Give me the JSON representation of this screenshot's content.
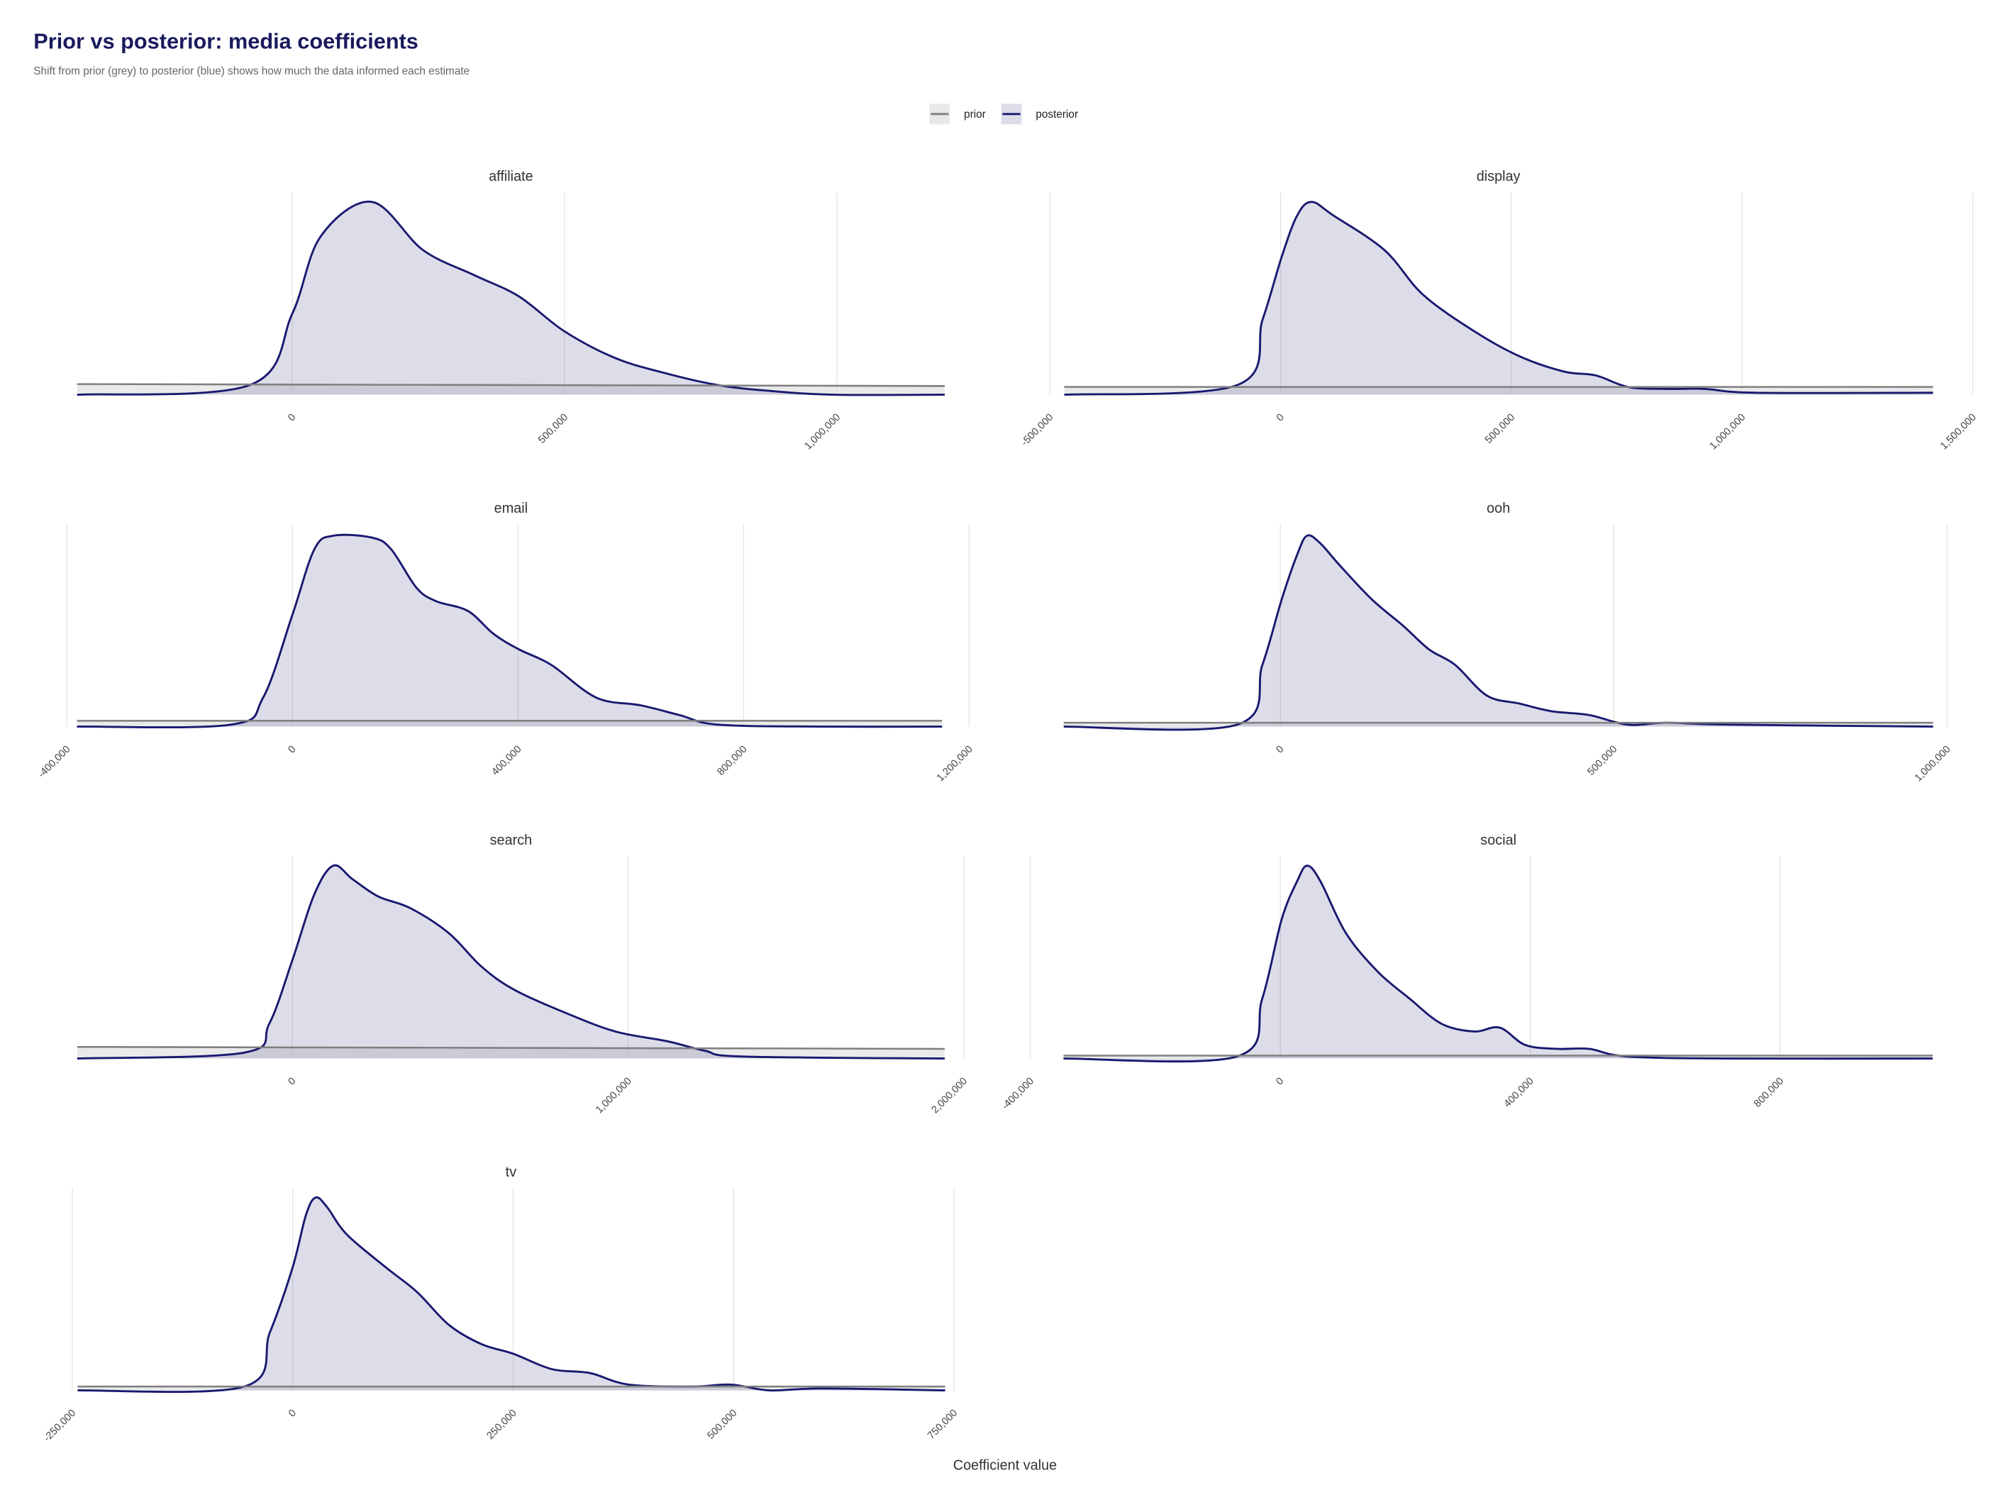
{
  "chart_data": {
    "type": "density",
    "title": "Prior vs posterior: media coefficients",
    "subtitle": "Shift from prior (grey) to posterior (blue) shows how much the data informed each estimate",
    "x_label": "Coefficient value",
    "legend": [
      {
        "name": "prior",
        "color": "#7f7f7f"
      },
      {
        "name": "posterior",
        "color": "#191970"
      }
    ],
    "panels": [
      {
        "title": "affiliate",
        "xlim": [
          -475000,
          1278000
        ],
        "xticks": [
          0,
          {
            "value": 500000,
            "label": "500,000"
          },
          {
            "value": 1000000,
            "label": "1,000,000"
          }
        ],
        "ylim": [
          0,
          1.05
        ],
        "series": [
          {
            "x": [
              -395000,
              1198000
            ],
            "values": [
              0.055,
              0.045
            ]
          },
          {
            "x": [
              -395000,
              -78000,
              0,
              52000,
              146000,
              240000,
              334000,
              416000,
              499000,
              593000,
              687000,
              781000,
              875000,
              993000,
              1198000
            ],
            "values": [
              0,
              0.05,
              0.42,
              0.82,
              1.0,
              0.75,
              0.62,
              0.51,
              0.33,
              0.19,
              0.11,
              0.05,
              0.02,
              0,
              0
            ]
          }
        ]
      },
      {
        "title": "display",
        "xlim": [
          -564000,
          1508000
        ],
        "xticks": [
          {
            "value": -500000,
            "label": "-500,000"
          },
          0,
          {
            "value": 500000,
            "label": "500,000"
          },
          {
            "value": 1000000,
            "label": "1,000,000"
          },
          {
            "value": 1500000,
            "label": "1,500,000"
          }
        ],
        "ylim": [
          0,
          1.05
        ],
        "series": [
          {
            "x": [
              -469000,
              1414000
            ],
            "values": [
              0.04,
              0.04
            ]
          },
          {
            "x": [
              -469000,
              -94000,
              -39000,
              3000,
              36000,
              67000,
              114000,
              225000,
              308000,
              419000,
              517000,
              614000,
              683000,
              753000,
              836000,
              919000,
              1031000,
              1414000
            ],
            "values": [
              0,
              0.05,
              0.39,
              0.72,
              0.93,
              1.0,
              0.93,
              0.75,
              0.52,
              0.33,
              0.2,
              0.12,
              0.1,
              0.04,
              0.03,
              0.03,
              0.01,
              0.01
            ]
          }
        ]
      },
      {
        "title": "email",
        "xlim": [
          -459000,
          1234000
        ],
        "xticks": [
          {
            "value": -400000,
            "label": "-400,000"
          },
          0,
          {
            "value": 400000,
            "label": "400,000"
          },
          {
            "value": 800000,
            "label": "800,000"
          },
          {
            "value": 1200000,
            "label": "1,200,000"
          }
        ],
        "ylim": [
          0,
          1.05
        ],
        "series": [
          {
            "x": [
              -382000,
              1152000
            ],
            "values": [
              0.03,
              0.03
            ]
          },
          {
            "x": [
              -382000,
              -109000,
              -52000,
              0,
              39000,
              73000,
              141000,
              175000,
              220000,
              255000,
              311000,
              357000,
              402000,
              459000,
              539000,
              618000,
              686000,
              755000,
              936000,
              1152000
            ],
            "values": [
              0,
              0.01,
              0.15,
              0.58,
              0.92,
              0.99,
              0.98,
              0.92,
              0.72,
              0.65,
              0.6,
              0.48,
              0.4,
              0.32,
              0.15,
              0.11,
              0.06,
              0.01,
              0,
              0
            ]
          }
        ]
      },
      {
        "title": "ooh",
        "xlim": [
          -390000,
          1044000
        ],
        "xticks": [
          0,
          {
            "value": 500000,
            "label": "500,000"
          },
          {
            "value": 1000000,
            "label": "1,000,000"
          }
        ],
        "ylim": [
          0,
          1.05
        ],
        "series": [
          {
            "x": [
              -325000,
              979000
            ],
            "values": [
              0.02,
              0.02
            ]
          },
          {
            "x": [
              -325000,
              -65000,
              -27000,
              2000,
              25000,
              40000,
              60000,
              88000,
              137000,
              185000,
              223000,
              262000,
              310000,
              358000,
              406000,
              463000,
              521000,
              579000,
              675000,
              979000
            ],
            "values": [
              0,
              0.01,
              0.32,
              0.66,
              0.89,
              0.99,
              0.95,
              0.84,
              0.66,
              0.52,
              0.4,
              0.32,
              0.16,
              0.12,
              0.08,
              0.06,
              0.01,
              0.02,
              0.01,
              0
            ]
          }
        ]
      },
      {
        "title": "search",
        "xlim": [
          -771000,
          2073000
        ],
        "xticks": [
          0,
          {
            "value": 1000000,
            "label": "1,000,000"
          },
          {
            "value": 2000000,
            "label": "2,000,000"
          }
        ],
        "ylim": [
          0,
          1.05
        ],
        "series": [
          {
            "x": [
              -641000,
              1943000
            ],
            "values": [
              0.06,
              0.05
            ]
          },
          {
            "x": [
              -641000,
              -145000,
              -69000,
              0,
              65000,
              122000,
              179000,
              256000,
              351000,
              466000,
              561000,
              657000,
              809000,
              962000,
              1115000,
              1229000,
              1344000,
              1943000
            ],
            "values": [
              0,
              0.03,
              0.18,
              0.51,
              0.85,
              1.0,
              0.93,
              0.84,
              0.78,
              0.65,
              0.48,
              0.36,
              0.24,
              0.14,
              0.09,
              0.04,
              0.01,
              0
            ]
          }
        ]
      },
      {
        "title": "social",
        "xlim": [
          -416000,
          1114000
        ],
        "xticks": [
          {
            "value": -400000,
            "label": "-400,000"
          },
          0,
          {
            "value": 400000,
            "label": "400,000"
          },
          {
            "value": 800000,
            "label": "800,000"
          }
        ],
        "ylim": [
          0,
          1.05
        ],
        "series": [
          {
            "x": [
              -347000,
              1044000
            ],
            "values": [
              0.015,
              0.015
            ]
          },
          {
            "x": [
              -347000,
              -70000,
              -29000,
              2000,
              27000,
              43000,
              64000,
              105000,
              156000,
              207000,
              258000,
              310000,
              351000,
              392000,
              443000,
              494000,
              556000,
              720000,
              1044000
            ],
            "values": [
              0,
              0.01,
              0.31,
              0.72,
              0.92,
              1.0,
              0.92,
              0.65,
              0.45,
              0.31,
              0.18,
              0.14,
              0.16,
              0.07,
              0.05,
              0.05,
              0.01,
              0,
              0
            ]
          }
        ]
      },
      {
        "title": "tv",
        "xlim": [
          -294000,
          789000
        ],
        "xticks": [
          {
            "value": -250000,
            "label": "-250,000"
          },
          0,
          {
            "value": 250000,
            "label": "250,000"
          },
          {
            "value": 500000,
            "label": "500,000"
          },
          {
            "value": 750000,
            "label": "750,000"
          }
        ],
        "ylim": [
          0,
          1.05
        ],
        "series": [
          {
            "x": [
              -244000,
              740000
            ],
            "values": [
              0.02,
              0.02
            ]
          },
          {
            "x": [
              -244000,
              -55000,
              -26000,
              0,
              15000,
              26000,
              39000,
              61000,
              105000,
              141000,
              177000,
              214000,
              250000,
              294000,
              337000,
              381000,
              453000,
              497000,
              541000,
              599000,
              740000
            ],
            "values": [
              0,
              0.02,
              0.3,
              0.64,
              0.91,
              1.0,
              0.95,
              0.81,
              0.64,
              0.51,
              0.34,
              0.24,
              0.19,
              0.11,
              0.09,
              0.03,
              0.02,
              0.03,
              0,
              0.01,
              0
            ]
          }
        ]
      }
    ]
  }
}
